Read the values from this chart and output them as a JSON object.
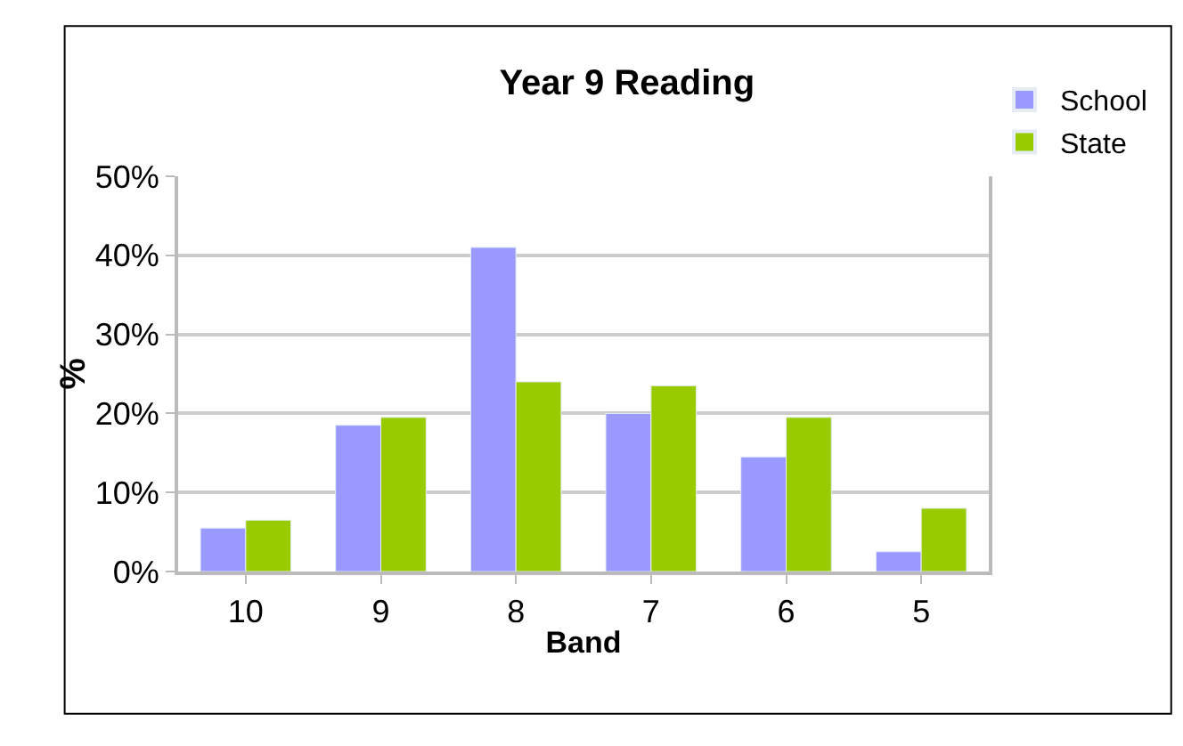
{
  "chart_data": {
    "type": "bar",
    "title": "Year 9 Reading",
    "xlabel": "Band",
    "ylabel": "%",
    "categories": [
      "10",
      "9",
      "8",
      "7",
      "6",
      "5"
    ],
    "series": [
      {
        "name": "School",
        "color": "#9999ff",
        "values": [
          5.5,
          18.5,
          41,
          20,
          14.5,
          2.5
        ]
      },
      {
        "name": "State",
        "color": "#99cc00",
        "values": [
          6.5,
          19.5,
          24,
          23.5,
          19.5,
          8
        ]
      }
    ],
    "ylim": [
      0,
      50
    ],
    "yticks": [
      {
        "value": 0,
        "label": "0%"
      },
      {
        "value": 10,
        "label": "10%"
      },
      {
        "value": 20,
        "label": "20%"
      },
      {
        "value": 30,
        "label": "30%"
      },
      {
        "value": 40,
        "label": "40%"
      },
      {
        "value": 50,
        "label": "50%"
      }
    ],
    "grid": "y",
    "legend": "top right"
  }
}
